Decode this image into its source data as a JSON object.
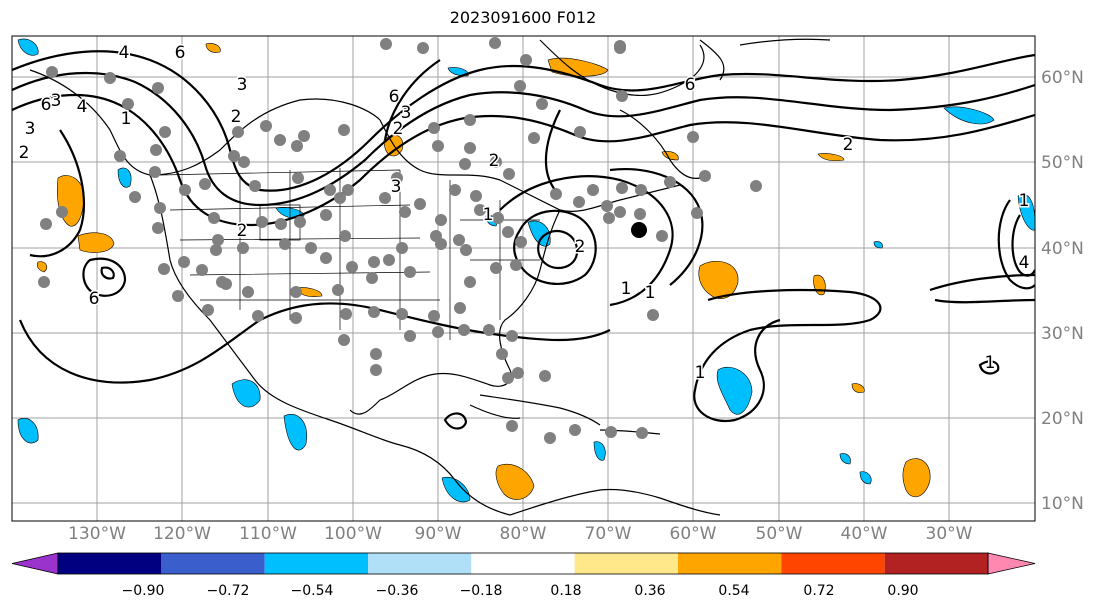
{
  "title": "2023091600 F012",
  "lat_labels": [
    "60°N",
    "50°N",
    "40°N",
    "30°N",
    "20°N",
    "10°N"
  ],
  "lon_labels": [
    "130°W",
    "120°W",
    "110°W",
    "100°W",
    "90°W",
    "80°W",
    "70°W",
    "60°W",
    "50°W",
    "40°W",
    "30°W"
  ],
  "contour_labels": [
    "4",
    "6",
    "3",
    "2",
    "1",
    "3",
    "2",
    "6",
    "6",
    "2",
    "3",
    "2",
    "1",
    "2",
    "1",
    "1",
    "1",
    "1",
    "2",
    "6",
    "3",
    "2",
    "1",
    "4",
    "6",
    "3",
    "4"
  ],
  "colorbar": {
    "ticks": [
      "−0.90",
      "−0.72",
      "−0.54",
      "−0.36",
      "−0.18",
      "0.18",
      "0.36",
      "0.54",
      "0.72",
      "0.90"
    ],
    "colors": [
      "#9933cc",
      "#000080",
      "#3a5fcd",
      "#00bfff",
      "#b0e0f8",
      "#ffffff",
      "#ffe88a",
      "#ffa500",
      "#ff4500",
      "#b22222",
      "#ff88b0"
    ]
  },
  "colors": {
    "positive_fill": "#ffa500",
    "negative_fill": "#00bfff",
    "station_marker": "#808080",
    "highlight_marker": "#000000",
    "grid": "#a0a0a0",
    "label_gray": "#808080"
  }
}
